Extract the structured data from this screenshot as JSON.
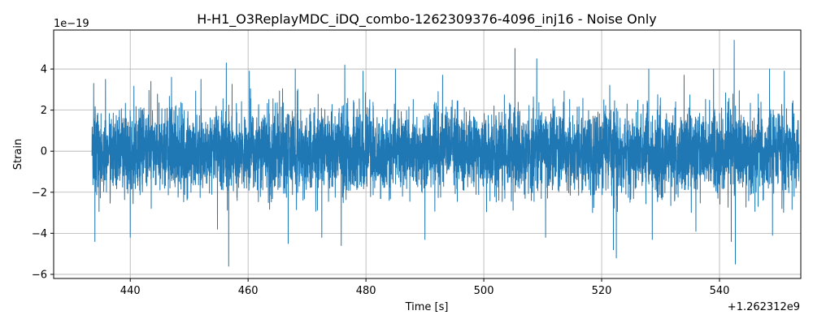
{
  "chart_data": {
    "type": "line",
    "title": "H-H1_O3ReplayMDC_iDQ_combo-1262309376-4096_inj16 - Noise Only",
    "xlabel": "Time [s]",
    "ylabel": "Strain",
    "x_offset_label": "+1.262312e9",
    "y_exponent_label": "1e−19",
    "xlim": [
      427.0,
      553.8
    ],
    "ylim": [
      -6.2,
      5.9
    ],
    "x_ticks": [
      440,
      460,
      480,
      500,
      520,
      540
    ],
    "x_tick_labels": [
      "440",
      "460",
      "480",
      "500",
      "520",
      "540"
    ],
    "y_ticks": [
      -6,
      -4,
      -2,
      0,
      2,
      4
    ],
    "y_tick_labels": [
      "−6",
      "−4",
      "−2",
      "0",
      "2",
      "4"
    ],
    "grid": true,
    "series": [
      {
        "color": "#1f77b4",
        "x_range": [
          433.5,
          553.5
        ],
        "typical_envelope": [
          -3.0,
          3.3
        ],
        "peaks": [
          {
            "x": 433.8,
            "y": 3.3
          },
          {
            "x": 434.0,
            "y": -4.4
          },
          {
            "x": 435.8,
            "y": 3.5
          },
          {
            "x": 440.0,
            "y": -4.2
          },
          {
            "x": 443.5,
            "y": 3.4
          },
          {
            "x": 447.0,
            "y": 3.6
          },
          {
            "x": 452.0,
            "y": 3.5
          },
          {
            "x": 454.8,
            "y": -3.8
          },
          {
            "x": 456.3,
            "y": 4.3
          },
          {
            "x": 456.7,
            "y": -5.6
          },
          {
            "x": 460.2,
            "y": 3.9
          },
          {
            "x": 466.8,
            "y": -4.5
          },
          {
            "x": 468.0,
            "y": 4.0
          },
          {
            "x": 472.5,
            "y": -4.2
          },
          {
            "x": 475.8,
            "y": -4.6
          },
          {
            "x": 476.4,
            "y": 4.2
          },
          {
            "x": 479.5,
            "y": 3.9
          },
          {
            "x": 485.0,
            "y": 4.0
          },
          {
            "x": 490.0,
            "y": -4.3
          },
          {
            "x": 493.0,
            "y": 3.7
          },
          {
            "x": 505.3,
            "y": 5.0
          },
          {
            "x": 509.0,
            "y": 4.5
          },
          {
            "x": 510.5,
            "y": -4.2
          },
          {
            "x": 522.0,
            "y": -4.8
          },
          {
            "x": 522.5,
            "y": -5.2
          },
          {
            "x": 528.0,
            "y": 4.0
          },
          {
            "x": 528.6,
            "y": -4.3
          },
          {
            "x": 534.0,
            "y": 3.7
          },
          {
            "x": 536.0,
            "y": -3.9
          },
          {
            "x": 539.0,
            "y": 4.0
          },
          {
            "x": 542.0,
            "y": -4.4
          },
          {
            "x": 542.5,
            "y": 5.4
          },
          {
            "x": 542.7,
            "y": -5.5
          },
          {
            "x": 548.5,
            "y": 4.0
          },
          {
            "x": 549.0,
            "y": -4.1
          },
          {
            "x": 551.0,
            "y": 3.9
          }
        ]
      }
    ]
  }
}
